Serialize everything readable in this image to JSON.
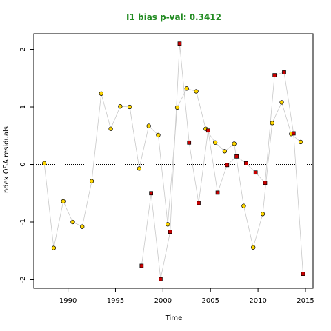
{
  "colors": {
    "title": "#228B22",
    "series_a": "#FFD700",
    "series_b": "#CC0000",
    "connector": "#C8C8C8"
  },
  "chart_data": {
    "type": "scatter",
    "title": "I1 bias p-val: 0.3412",
    "xlabel": "Time",
    "ylabel": "Index OSA residuals",
    "xlim": [
      1986.4,
      2015.8
    ],
    "ylim": [
      -2.15,
      2.27
    ],
    "xticks": [
      1990,
      1995,
      2000,
      2005,
      2010,
      2015
    ],
    "yticks": [
      -2,
      -1,
      0,
      1,
      2
    ],
    "reference_line": {
      "y": 0,
      "style": "dotted"
    },
    "grid": false,
    "series": [
      {
        "marker": "circle",
        "color": "#FFD700",
        "x": [
          1987.5,
          1988.5,
          1989.5,
          1990.5,
          1991.5,
          1992.5,
          1993.5,
          1994.5,
          1995.5,
          1996.5,
          1997.5,
          1998.5,
          1999.5,
          2000.5,
          2001.5,
          2002.5,
          2003.5,
          2004.5,
          2005.5,
          2006.5,
          2007.5,
          2008.5,
          2009.5,
          2010.5,
          2011.5,
          2012.5,
          2013.5,
          2014.5
        ],
        "y": [
          0.02,
          -1.45,
          -0.64,
          -1.0,
          -1.08,
          -0.29,
          1.23,
          0.62,
          1.01,
          1.0,
          -0.07,
          0.67,
          0.51,
          -1.04,
          0.99,
          1.32,
          1.27,
          0.62,
          0.38,
          0.23,
          0.36,
          -0.72,
          -1.44,
          -0.86,
          0.72,
          1.08,
          0.53,
          0.39
        ]
      },
      {
        "marker": "square",
        "color": "#CC0000",
        "x": [
          1997.75,
          1998.75,
          1999.75,
          2000.75,
          2001.75,
          2002.75,
          2003.75,
          2004.75,
          2005.75,
          2006.75,
          2007.75,
          2008.75,
          2009.75,
          2010.75,
          2011.75,
          2012.75,
          2013.75,
          2014.75
        ],
        "y": [
          -1.76,
          -0.5,
          -1.99,
          -1.17,
          2.1,
          0.38,
          -0.67,
          0.59,
          -0.49,
          -0.01,
          0.14,
          0.02,
          -0.14,
          -0.32,
          1.55,
          1.6,
          0.54,
          -1.9
        ]
      }
    ]
  }
}
